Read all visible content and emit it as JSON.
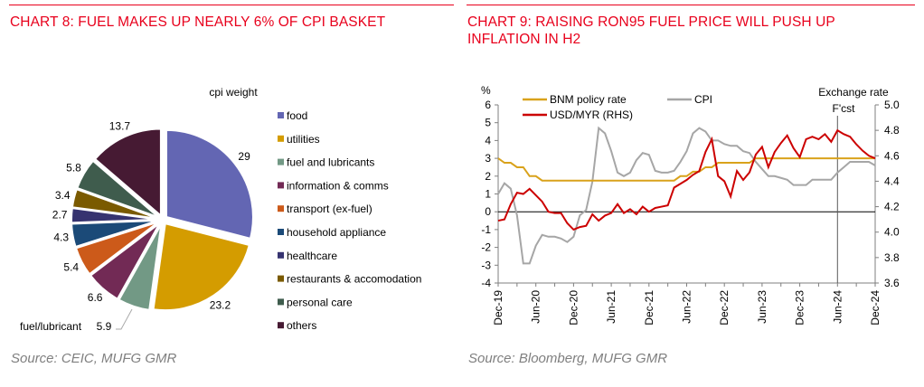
{
  "left": {
    "title": "CHART 8: FUEL MAKES UP NEARLY 6% OF CPI BASKET",
    "source": "Source: CEIC, MUFG GMR"
  },
  "right": {
    "title": "CHART 9: RAISING RON95 FUEL PRICE WILL PUSH UP INFLATION IN H2",
    "source": "Source: Bloomberg, MUFG GMR"
  },
  "chart_data": [
    {
      "type": "pie",
      "title": "cpi weight",
      "legend_position": "right",
      "callout": "fuel/lubricant",
      "slices": [
        {
          "name": "food",
          "value": 29,
          "label": "29",
          "color": "#6366b3"
        },
        {
          "name": "utilities",
          "value": 23.2,
          "label": "23.2",
          "color": "#d49c00"
        },
        {
          "name": "fuel and lubricants",
          "value": 5.9,
          "label": "5.9",
          "color": "#729985"
        },
        {
          "name": "information & comms",
          "value": 6.6,
          "label": "6.6",
          "color": "#722a55"
        },
        {
          "name": "transport (ex-fuel)",
          "value": 5.4,
          "label": "5.4",
          "color": "#cc5a1a"
        },
        {
          "name": "household appliance",
          "value": 4.3,
          "label": "4.3",
          "color": "#1b4a78"
        },
        {
          "name": "healthcare",
          "value": 2.7,
          "label": "2.7",
          "color": "#363370"
        },
        {
          "name": "restaurants & accomodation",
          "value": 3.4,
          "label": "3.4",
          "color": "#7a5a00"
        },
        {
          "name": "personal care",
          "value": 5.8,
          "label": "5.8",
          "color": "#3f5c4d"
        },
        {
          "name": "others",
          "value": 13.7,
          "label": "13.7",
          "color": "#461a33"
        }
      ]
    },
    {
      "type": "line",
      "ylabel": "%",
      "y2label": "Exchange rate",
      "ylim": [
        -4,
        6
      ],
      "y2lim": [
        3.6,
        5.0
      ],
      "yticks": [
        "6",
        "5",
        "4",
        "3",
        "2",
        "1",
        "0",
        "-1",
        "-2",
        "-3",
        "-4"
      ],
      "y2ticks": [
        "5.0",
        "4.8",
        "4.6",
        "4.4",
        "4.2",
        "4.0",
        "3.8",
        "3.6"
      ],
      "xticks": [
        "Dec-19",
        "Jun-20",
        "Dec-20",
        "Jun-21",
        "Dec-21",
        "Jun-22",
        "Dec-22",
        "Jun-23",
        "Dec-23",
        "Jun-24",
        "Dec-24"
      ],
      "x_start": "Dec-19",
      "x_end": "Dec-24",
      "frequency": "monthly",
      "annotation": {
        "label": "F'cst",
        "at": "Jun-24"
      },
      "legend_position": "top-left",
      "series": [
        {
          "name": "BNM policy rate",
          "axis": "left",
          "color": "#d9a21b",
          "values": [
            3.0,
            2.75,
            2.75,
            2.5,
            2.5,
            2.0,
            2.0,
            1.75,
            1.75,
            1.75,
            1.75,
            1.75,
            1.75,
            1.75,
            1.75,
            1.75,
            1.75,
            1.75,
            1.75,
            1.75,
            1.75,
            1.75,
            1.75,
            1.75,
            1.75,
            1.75,
            1.75,
            1.75,
            1.75,
            2.0,
            2.0,
            2.25,
            2.25,
            2.5,
            2.5,
            2.75,
            2.75,
            2.75,
            2.75,
            2.75,
            2.75,
            3.0,
            3.0,
            3.0,
            3.0,
            3.0,
            3.0,
            3.0,
            3.0,
            3.0,
            3.0,
            3.0,
            3.0,
            3.0,
            3.0,
            3.0,
            3.0,
            3.0,
            3.0,
            3.0,
            3.0
          ]
        },
        {
          "name": "CPI",
          "axis": "left",
          "color": "#a6a6a6",
          "values": [
            1.0,
            1.6,
            1.3,
            -0.2,
            -2.9,
            -2.9,
            -1.9,
            -1.3,
            -1.4,
            -1.4,
            -1.5,
            -1.7,
            -1.4,
            -0.2,
            0.1,
            1.7,
            4.7,
            4.4,
            3.4,
            2.2,
            2.0,
            2.2,
            2.9,
            3.3,
            3.2,
            2.3,
            2.2,
            2.2,
            2.3,
            2.8,
            3.4,
            4.4,
            4.7,
            4.5,
            4.0,
            4.0,
            3.8,
            3.7,
            3.7,
            3.4,
            3.3,
            2.8,
            2.4,
            2.0,
            2.0,
            1.9,
            1.8,
            1.5,
            1.5,
            1.5,
            1.8,
            1.8,
            1.8,
            1.8,
            2.2,
            2.5,
            2.8,
            2.8,
            2.8,
            2.8,
            2.6
          ]
        },
        {
          "name": "USD/MYR (RHS)",
          "axis": "right",
          "color": "#cc0000",
          "values": [
            4.09,
            4.1,
            4.22,
            4.31,
            4.3,
            4.34,
            4.29,
            4.24,
            4.16,
            4.15,
            4.15,
            4.07,
            4.02,
            4.04,
            4.05,
            4.14,
            4.09,
            4.13,
            4.15,
            4.22,
            4.15,
            4.18,
            4.14,
            4.2,
            4.16,
            4.19,
            4.2,
            4.21,
            4.35,
            4.38,
            4.41,
            4.45,
            4.48,
            4.63,
            4.73,
            4.44,
            4.4,
            4.28,
            4.48,
            4.41,
            4.47,
            4.61,
            4.67,
            4.51,
            4.63,
            4.7,
            4.76,
            4.66,
            4.59,
            4.73,
            4.75,
            4.73,
            4.77,
            4.71,
            4.8,
            4.77,
            4.75,
            4.69,
            4.64,
            4.6,
            4.58
          ]
        }
      ]
    }
  ]
}
